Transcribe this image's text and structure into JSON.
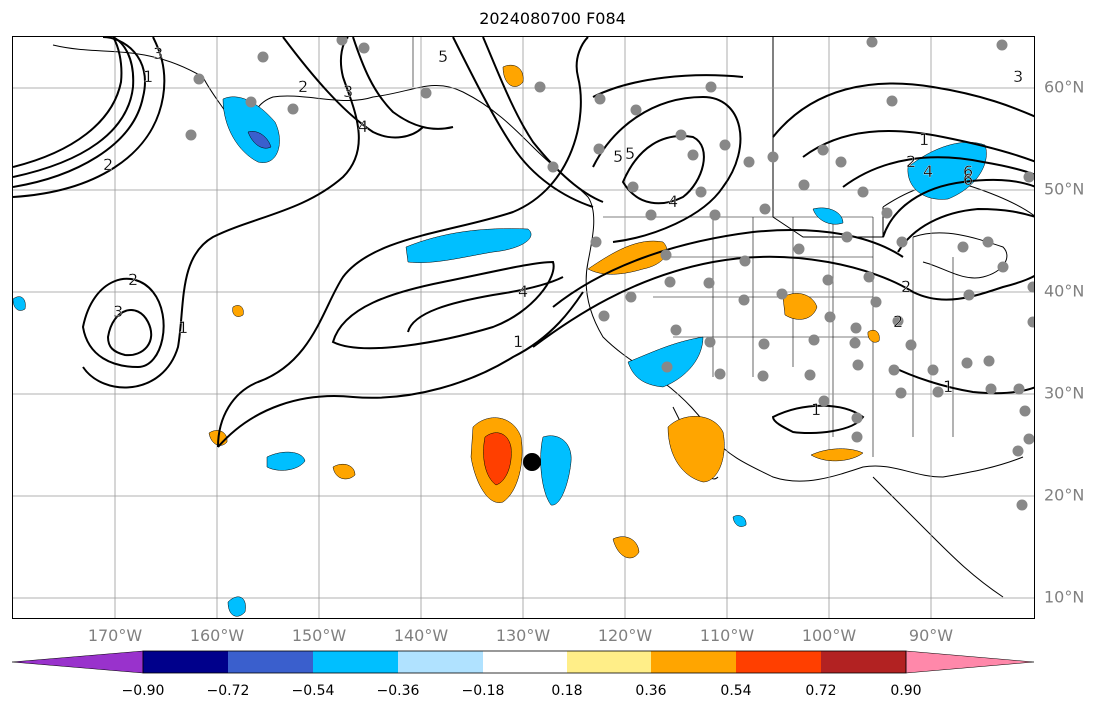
{
  "title": "2024080700 F084",
  "lon_labels": [
    "170°W",
    "160°W",
    "150°W",
    "140°W",
    "130°W",
    "120°W",
    "110°W",
    "100°W",
    "90°W"
  ],
  "lat_labels": [
    "60°N",
    "50°N",
    "40°N",
    "30°N",
    "20°N",
    "10°N"
  ],
  "contour_labels": [
    "2",
    "1",
    "3",
    "2",
    "1",
    "4",
    "1",
    "5",
    "4",
    "3",
    "2",
    "1",
    "2",
    "4",
    "6",
    "5",
    "4",
    "3",
    "2",
    "1",
    "1",
    "2",
    "6",
    "5",
    "3"
  ],
  "colorbar": {
    "ticks": [
      "−0.90",
      "−0.72",
      "−0.54",
      "−0.36",
      "−0.18",
      "0.18",
      "0.36",
      "0.54",
      "0.72",
      "0.90"
    ],
    "colors": [
      "#9932cc",
      "#00008b",
      "#3a5fcd",
      "#00bfff",
      "#b0e2ff",
      "#ffffff",
      "#ffee88",
      "#ffa500",
      "#ff3f00",
      "#b22222",
      "#ff88aa"
    ]
  },
  "station_marker": "black-dot"
}
